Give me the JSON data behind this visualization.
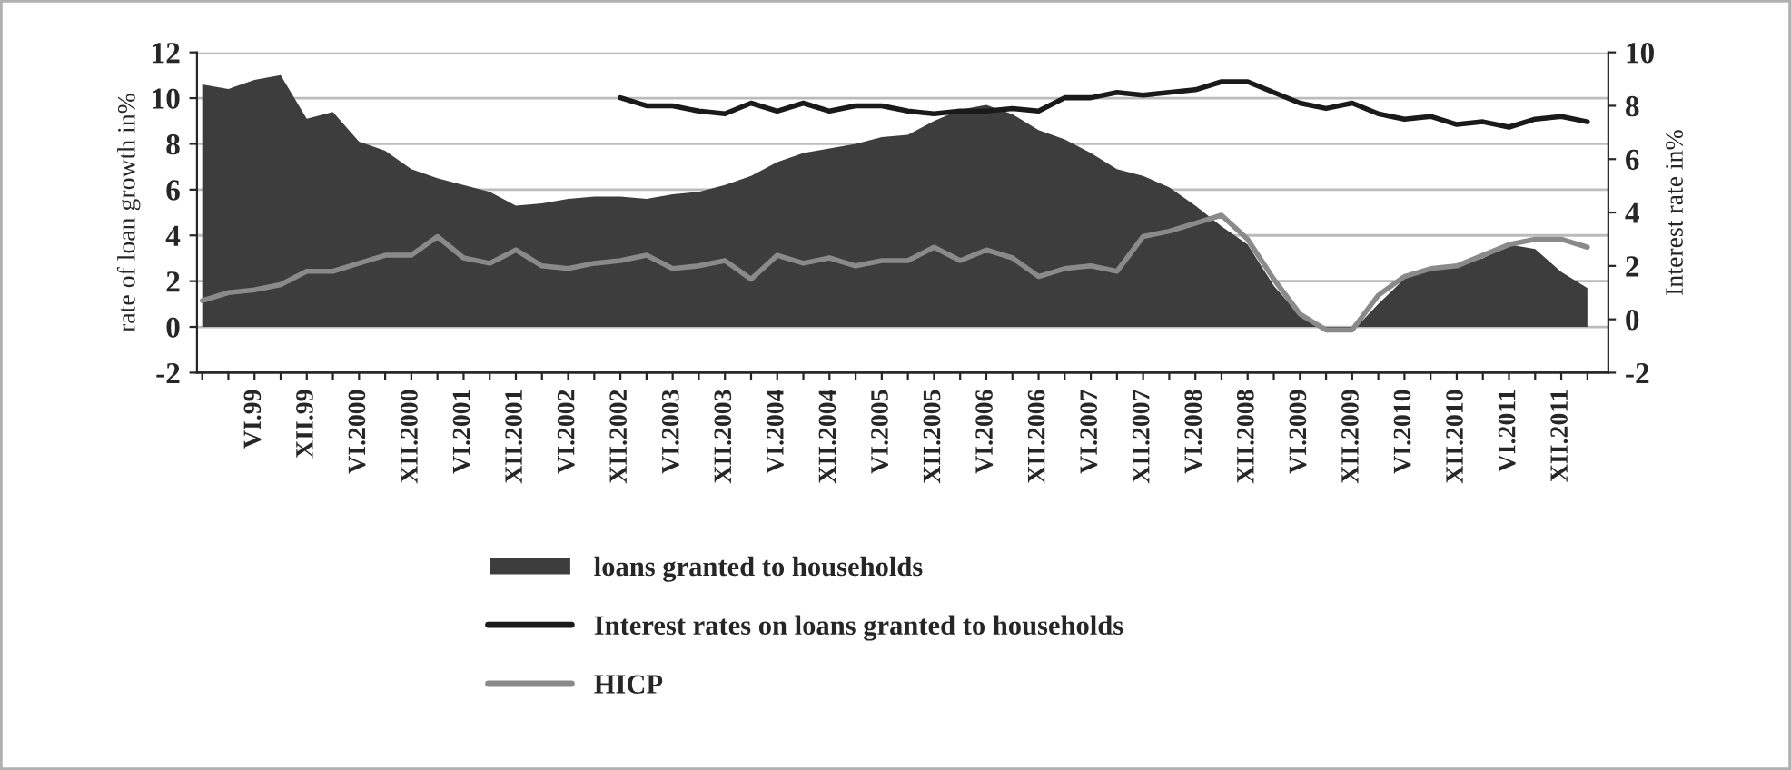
{
  "chart_data": {
    "type": "area",
    "ylabel": "rate of loan growth in%",
    "y2label": "Interest rate in%",
    "categories": [
      null,
      null,
      "VI.99",
      null,
      "XII.99",
      null,
      "VI.2000",
      null,
      "XII.2000",
      null,
      "VI.2001",
      null,
      "XII.2001",
      null,
      "VI.2002",
      null,
      "XII.2002",
      null,
      "VI.2003",
      null,
      "XII.2003",
      null,
      "VI.2004",
      null,
      "XII.2004",
      null,
      "VI.2005",
      null,
      "XII.2005",
      null,
      "VI.2006",
      null,
      "XII.2006",
      null,
      "VI.2007",
      null,
      "XII.2007",
      null,
      "VI.2008",
      null,
      "XII.2008",
      null,
      "VI.2009",
      null,
      "XII.2009",
      null,
      "VI.2010",
      null,
      "XII.2010",
      null,
      "VI.2011",
      null,
      "XII.2011",
      null
    ],
    "series": [
      {
        "name": "loans granted to households",
        "color": "#3d3d3d",
        "values": [
          10.6,
          10.4,
          10.8,
          11.0,
          9.1,
          9.4,
          8.1,
          7.7,
          6.9,
          6.5,
          6.2,
          5.9,
          5.3,
          5.4,
          5.6,
          5.7,
          5.7,
          5.6,
          5.8,
          5.9,
          6.2,
          6.6,
          7.2,
          7.6,
          7.8,
          8.0,
          8.3,
          8.4,
          9.0,
          9.5,
          9.7,
          9.3,
          8.6,
          8.2,
          7.6,
          6.9,
          6.6,
          6.1,
          5.3,
          4.4,
          3.6,
          1.8,
          0.5,
          -0.2,
          -0.2,
          1.0,
          2.1,
          2.6,
          2.7,
          3.0,
          3.6,
          3.4,
          2.4,
          1.7
        ]
      },
      {
        "name": "Interest rates on loans granted to households",
        "type": "line",
        "axis": "y2",
        "color": "#1a1a1a",
        "values": [
          null,
          null,
          null,
          null,
          null,
          null,
          null,
          null,
          null,
          null,
          null,
          null,
          null,
          null,
          null,
          null,
          8.3,
          8.0,
          8.0,
          7.8,
          7.7,
          8.1,
          7.8,
          8.1,
          7.8,
          8.0,
          8.0,
          7.8,
          7.7,
          7.8,
          7.8,
          7.9,
          7.8,
          8.3,
          8.3,
          8.5,
          8.4,
          8.5,
          8.6,
          8.9,
          8.9,
          8.5,
          8.1,
          7.9,
          8.1,
          7.7,
          7.5,
          7.6,
          7.3,
          7.4,
          7.2,
          7.5,
          7.6,
          7.4
        ]
      },
      {
        "name": "HICP",
        "type": "line",
        "axis": "y2",
        "color": "#8a8a8a",
        "values": [
          0.7,
          1.0,
          1.1,
          1.3,
          1.8,
          1.8,
          2.1,
          2.4,
          2.4,
          3.1,
          2.3,
          2.1,
          2.6,
          2.0,
          1.9,
          2.1,
          2.2,
          2.4,
          1.9,
          2.0,
          2.2,
          1.5,
          2.4,
          2.1,
          2.3,
          2.0,
          2.2,
          2.2,
          2.7,
          2.2,
          2.6,
          2.3,
          1.6,
          1.9,
          2.0,
          1.8,
          3.1,
          3.3,
          3.6,
          3.9,
          3.0,
          1.5,
          0.2,
          -0.4,
          -0.4,
          0.9,
          1.6,
          1.9,
          2.0,
          2.4,
          2.8,
          3.0,
          3.0,
          2.7
        ]
      }
    ],
    "ylim": [
      -2,
      12
    ],
    "yticks": [
      -2,
      0,
      2,
      4,
      6,
      8,
      10,
      12
    ],
    "y2lim": [
      -2,
      10
    ],
    "y2ticks": [
      -2,
      0,
      2,
      4,
      6,
      8,
      10
    ],
    "grid": "y",
    "legend": "bottom"
  }
}
